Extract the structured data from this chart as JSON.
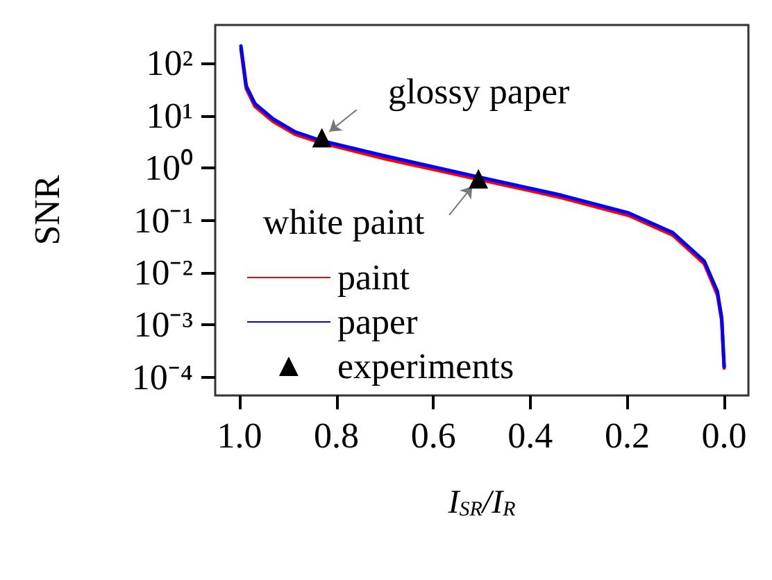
{
  "chart_data": {
    "type": "line",
    "xlabel": "I$_{SR}$/I$_{R}$",
    "ylabel": "SNR",
    "log": "y",
    "grid": false,
    "legend": "bottom left",
    "marker": "none",
    "line_style": "solid",
    "xlim": [
      1.05,
      -0.05
    ],
    "xticks": [
      {
        "value": 1,
        "label": "1.0"
      },
      {
        "value": 0.8,
        "label": "0.8"
      },
      {
        "value": 0.6,
        "label": "0.6"
      },
      {
        "value": 0.4,
        "label": "0.4"
      },
      {
        "value": 0.2,
        "label": "0.2"
      },
      {
        "value": 0,
        "label": "0.0"
      }
    ],
    "ylim": [
      4.5e-05,
      540
    ],
    "yticks": [
      {
        "value": 100,
        "label": "10²"
      },
      {
        "value": 10,
        "label": "10¹"
      },
      {
        "value": 1,
        "label": "10⁰"
      },
      {
        "value": 0.1,
        "label": "10⁻¹"
      },
      {
        "value": 0.01,
        "label": "10⁻²"
      },
      {
        "value": 0.001,
        "label": "10⁻³"
      },
      {
        "value": 0.0001,
        "label": "10⁻⁴"
      }
    ],
    "series": [
      {
        "name": "paint",
        "color": "#ff0000",
        "x": [
          0.997,
          0.986,
          0.968,
          0.931,
          0.885,
          0.83,
          0.7,
          0.518,
          0.335,
          0.197,
          0.106,
          0.041,
          0.014,
          0.005,
          0.0
        ],
        "values": [
          190,
          33,
          15,
          7.8,
          4.4,
          3.0,
          1.5,
          0.64,
          0.27,
          0.124,
          0.052,
          0.0148,
          0.0038,
          0.0012,
          0.00015
        ]
      },
      {
        "name": "paper",
        "color": "#0000ff",
        "x": [
          0.997,
          0.986,
          0.968,
          0.931,
          0.885,
          0.83,
          0.7,
          0.518,
          0.335,
          0.197,
          0.106,
          0.041,
          0.014,
          0.005,
          0.0
        ],
        "values": [
          215,
          37,
          17,
          8.7,
          4.9,
          3.3,
          1.7,
          0.71,
          0.3,
          0.138,
          0.058,
          0.0166,
          0.0044,
          0.00135,
          0.00016
        ]
      },
      {
        "name": "experiments",
        "type": "scatter",
        "marker": "triangle",
        "color": "#000000",
        "x": [
          0.83,
          0.507
        ],
        "values": [
          3.8,
          0.62
        ]
      }
    ],
    "annotations": [
      {
        "text": "glossy paper",
        "x": 0.83,
        "y": 3.8
      },
      {
        "text": "white paint",
        "x": 0.507,
        "y": 0.62
      }
    ]
  }
}
